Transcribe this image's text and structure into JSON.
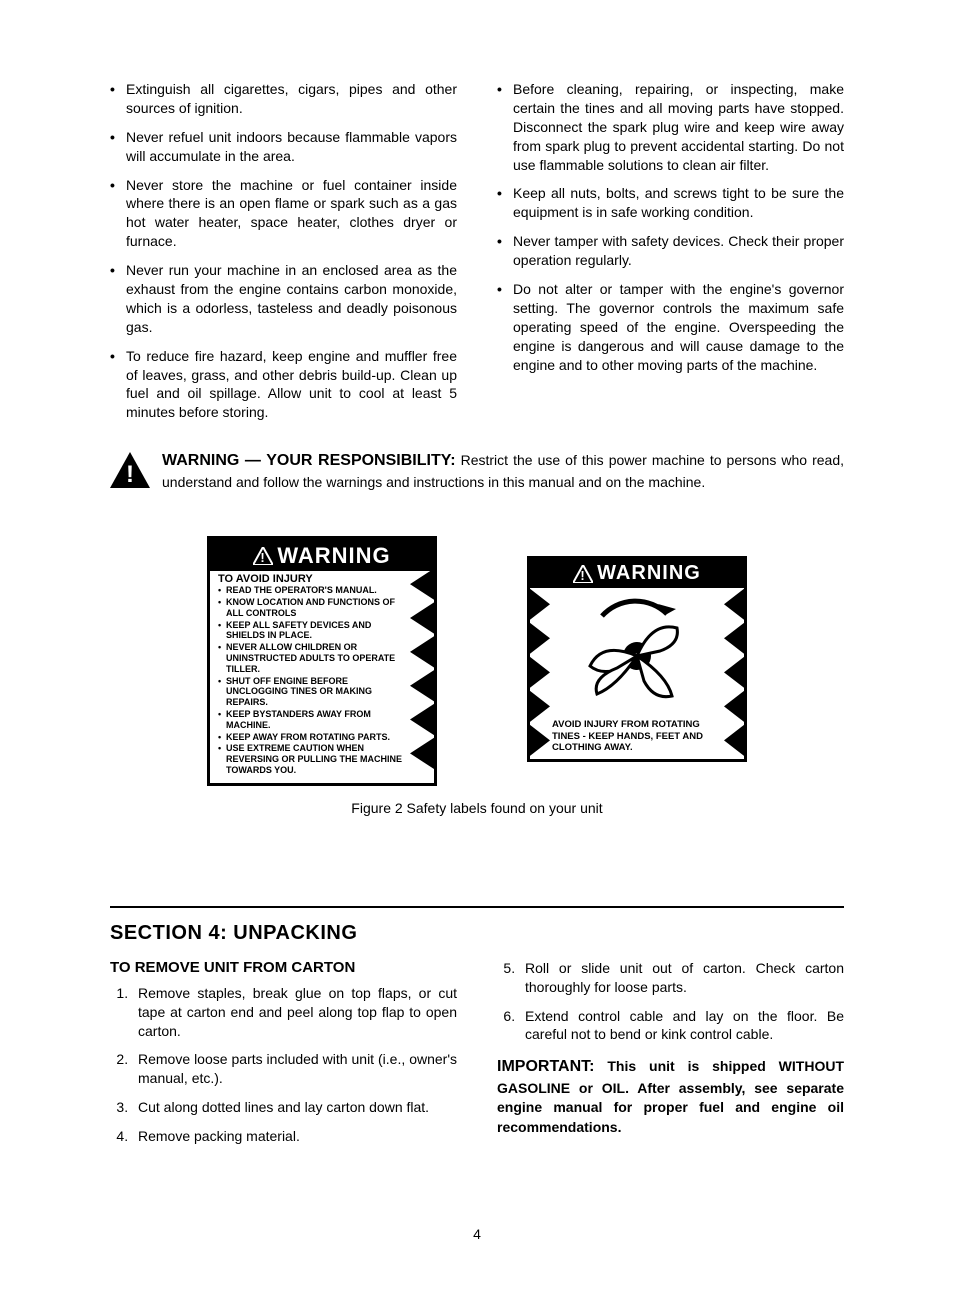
{
  "top_bullets_left": [
    "Extinguish all cigarettes, cigars, pipes and other sources of ignition.",
    "Never refuel unit indoors because flammable vapors will accumulate in the area.",
    "Never store the machine or fuel container inside where there is an open flame or spark such as a gas hot water heater, space heater, clothes dryer or furnace.",
    "Never run your machine in an enclosed area as the exhaust from the engine contains carbon monoxide, which is a odorless, tasteless and deadly poisonous gas.",
    "To reduce fire hazard, keep engine and muffler free of leaves, grass, and other debris build-up. Clean up fuel and oil spillage. Allow unit to cool at least 5 minutes before storing."
  ],
  "top_bullets_right": [
    "Before cleaning, repairing, or inspecting, make certain the tines and all moving parts have stopped. Disconnect the spark plug wire and keep wire away from spark plug to prevent accidental starting. Do not use flammable solutions to clean air filter.",
    "Keep all nuts, bolts, and screws tight to be sure the equipment is in safe working condition.",
    "Never tamper with safety devices. Check their proper operation regularly.",
    "Do not alter or tamper with the engine's governor setting. The governor controls the maximum safe operating speed of the engine. Overspeeding the engine is dangerous and will cause damage to the engine and to other moving parts of the machine."
  ],
  "responsibility": {
    "lead": "WARNING — YOUR RESPONSIBILITY:",
    "body": " Restrict the use of this power machine to persons who read, understand and follow the warnings and instructions in this manual and on the machine."
  },
  "label1": {
    "head": "WARNING",
    "sub": "TO AVOID INJURY",
    "items": [
      "READ THE OPERATOR'S MANUAL.",
      "KNOW LOCATION AND FUNCTIONS OF ALL CONTROLS",
      "KEEP ALL SAFETY DEVICES AND SHIELDS IN PLACE.",
      "NEVER ALLOW CHILDREN OR UNINSTRUCTED ADULTS TO OPERATE TILLER.",
      "SHUT OFF ENGINE BEFORE UNCLOGGING TINES OR MAKING REPAIRS.",
      "KEEP BYSTANDERS AWAY FROM MACHINE.",
      "KEEP AWAY FROM ROTATING PARTS.",
      "USE EXTREME CAUTION WHEN REVERSING OR PULLING THE MACHINE TOWARDS YOU."
    ]
  },
  "label2": {
    "head": "WARNING",
    "caption": "AVOID INJURY FROM ROTATING TINES - KEEP HANDS, FEET AND CLOTHING AWAY."
  },
  "figure_caption": "Figure 2  Safety labels found on your unit",
  "section4": {
    "title": "SECTION 4: UNPACKING",
    "subhead": "TO REMOVE UNIT FROM CARTON",
    "steps_left": [
      "Remove staples, break glue on top flaps, or cut tape at carton end and peel along top flap to open carton.",
      "Remove loose parts included with unit (i.e., owner's manual, etc.).",
      "Cut along dotted lines and lay carton down flat.",
      "Remove packing material."
    ],
    "steps_right": [
      "Roll or slide unit out of carton. Check carton thoroughly for loose parts.",
      "Extend control cable and lay on the floor. Be careful not to bend or kink control cable."
    ],
    "important_lead": "IMPORTANT:",
    "important_body": " This unit is shipped WITHOUT GASOLINE or OIL. After assembly, see separate engine manual for proper fuel and engine oil recommendations."
  },
  "page_number": "4",
  "colors": {
    "black": "#000000",
    "white": "#ffffff"
  }
}
